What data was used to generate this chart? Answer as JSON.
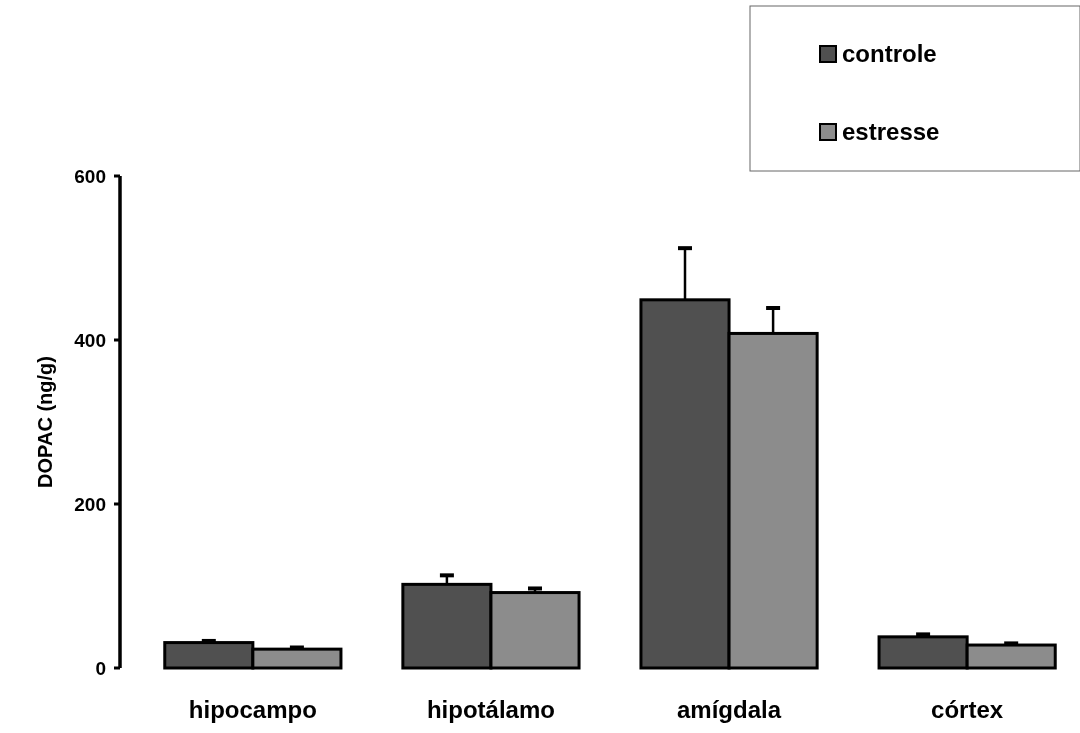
{
  "chart_data": {
    "type": "bar",
    "ylabel": "DOPAC (ng/g)",
    "categories": [
      "hipocampo",
      "hipotálamo",
      "amígdala",
      "córtex"
    ],
    "series": [
      {
        "name": "controle",
        "color": "#505050",
        "values": [
          31,
          102,
          449,
          38
        ],
        "errors": [
          2,
          11,
          63,
          3
        ]
      },
      {
        "name": "estresse",
        "color": "#8c8c8c",
        "values": [
          23,
          92,
          408,
          28
        ],
        "errors": [
          2,
          5,
          31,
          2
        ]
      }
    ],
    "ylim": [
      0,
      600
    ],
    "yticks": [
      0,
      200,
      400,
      600
    ],
    "grid": false,
    "legend": "top right"
  }
}
